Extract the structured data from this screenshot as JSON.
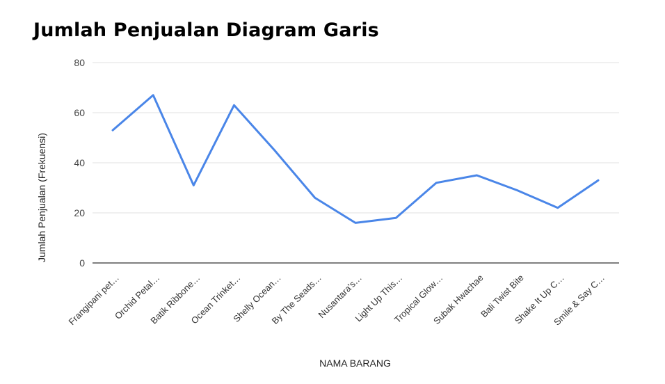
{
  "chart_data": {
    "type": "line",
    "title": "Jumlah Penjualan Diagram Garis",
    "xlabel": "NAMA BARANG",
    "ylabel": "Jumlah Penjualan (Frekuensi)",
    "ylim": [
      0,
      80
    ],
    "yticks": [
      "0",
      "20",
      "40",
      "60",
      "80"
    ],
    "grid": true,
    "legend": "none",
    "categories": [
      "Frangipani pet…",
      "Orchid Petal…",
      "Batik Ribbone…",
      "Ocean Trinket…",
      "Shelly Ocean…",
      "By The Seads…",
      "Nusantara's…",
      "Light Up This…",
      "Tropical Glow…",
      "Subak Hwachae",
      "Bali Twist Bite",
      "Shake It Up C…",
      "Smile & Say C…"
    ],
    "series": [
      {
        "values": [
          53,
          67,
          31,
          63,
          45,
          26,
          16,
          18,
          32,
          35,
          29,
          22,
          33
        ]
      }
    ],
    "colors": {
      "line": "#4a86e8",
      "grid": "#e0e0e0",
      "axis": "#333333"
    }
  }
}
